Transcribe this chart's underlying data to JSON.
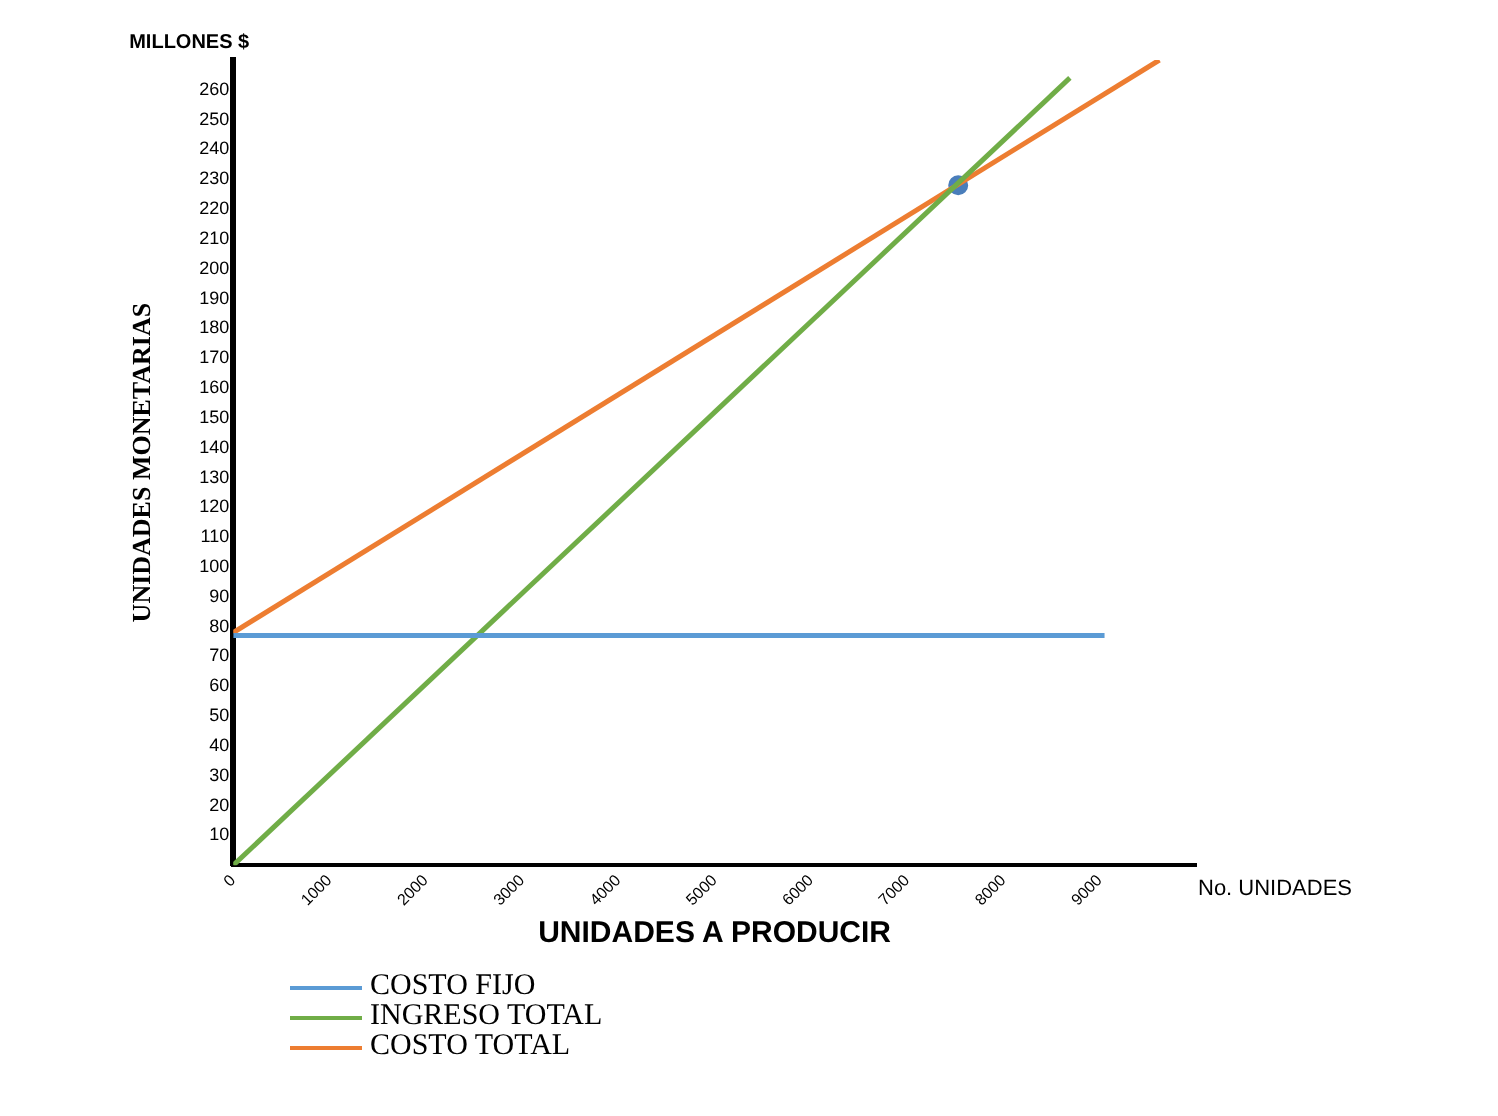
{
  "chart_data": {
    "type": "line",
    "xlabel": "UNIDADES A PRODUCIR",
    "ylabel": "UNIDADES MONETARIAS",
    "annotations": [
      "MILLONES $",
      "No. UNIDADES"
    ],
    "xlim": [
      0,
      10000
    ],
    "xticks": [
      {
        "value": 0,
        "label": "0"
      },
      1000,
      2000,
      3000,
      4000,
      5000,
      6000,
      7000,
      8000,
      9000
    ],
    "ylim": [
      0,
      270
    ],
    "yticks": [
      10,
      20,
      30,
      40,
      50,
      60,
      70,
      80,
      90,
      100,
      110,
      120,
      130,
      140,
      150,
      160,
      170,
      180,
      190,
      200,
      210,
      220,
      230,
      240,
      250,
      260
    ],
    "grid": false,
    "legend": "bottom left",
    "line_style": "solid",
    "series": [
      {
        "name": "COSTO FIJO",
        "color": "#5b9bd5",
        "x": [
          0,
          9050
        ],
        "values": [
          77,
          77
        ]
      },
      {
        "name": "INGRESO TOTAL",
        "color": "#70ad47",
        "x": [
          0,
          8690
        ],
        "values": [
          0,
          264
        ]
      },
      {
        "name": "COSTO TOTAL",
        "color": "#ed7d31",
        "x": [
          0,
          9620
        ],
        "values": [
          78,
          270
        ]
      },
      {
        "type": "scatter",
        "marker": "circle",
        "color": "#4a7ebb",
        "x": [
          7530
        ],
        "values": [
          228
        ]
      }
    ]
  }
}
